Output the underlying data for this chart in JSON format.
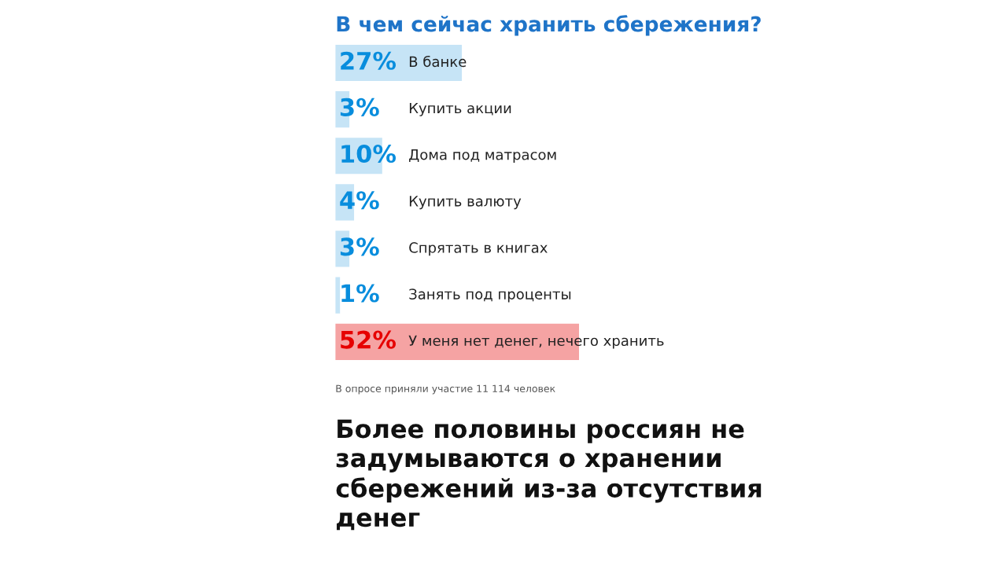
{
  "chart_data": {
    "type": "bar",
    "orientation": "horizontal",
    "title": "В чем сейчас хранить сбережения?",
    "categories": [
      "В банке",
      "Купить акции",
      "Дома под матрасом",
      "Купить валюту",
      "Спрятать в книгах",
      "Занять под проценты",
      "У меня нет денег, нечего хранить"
    ],
    "values": [
      27,
      3,
      10,
      4,
      3,
      1,
      52
    ],
    "value_labels": [
      "27%",
      "3%",
      "10%",
      "4%",
      "3%",
      "1%",
      "52%"
    ],
    "colors": [
      "#c6e4f6",
      "#c6e4f6",
      "#c6e4f6",
      "#c6e4f6",
      "#c6e4f6",
      "#c6e4f6",
      "#f5a3a3"
    ],
    "annotations": [
      "В опросе приняли участие 11 114 человек",
      "Более половины россиян не\nзадумываются о хранении\nсбережений из-за отсутствия\nденег"
    ]
  }
}
